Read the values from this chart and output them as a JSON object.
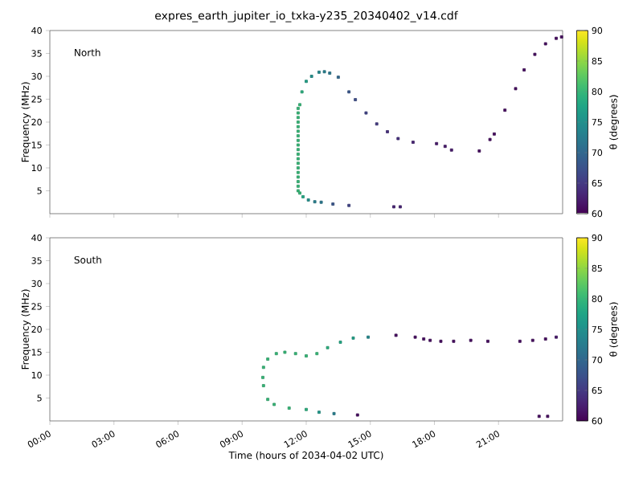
{
  "chart_data": [
    {
      "type": "scatter",
      "title": "expres_earth_jupiter_io_txka-y235_20340402_v14.cdf",
      "ylabel": "Frequency (MHz)",
      "clabel": "θ (degrees)",
      "annotations": [
        "North"
      ],
      "marker": "square",
      "tick_labels": "y",
      "xlim": [
        0,
        24
      ],
      "xticks": [
        {
          "value": 0,
          "label": null
        },
        {
          "value": 3,
          "label": null
        },
        {
          "value": 6,
          "label": null
        },
        {
          "value": 9,
          "label": null
        },
        {
          "value": 12,
          "label": null
        },
        {
          "value": 15,
          "label": null
        },
        {
          "value": 18,
          "label": null
        },
        {
          "value": 21,
          "label": null
        }
      ],
      "ylim": [
        0,
        40
      ],
      "yticks": [
        5,
        10,
        15,
        20,
        25,
        30,
        35,
        40
      ],
      "clim": [
        60,
        90
      ],
      "cticks": [
        60,
        65,
        70,
        75,
        80,
        85,
        90
      ],
      "series": [
        {
          "x": [
            11.62,
            11.62,
            11.62,
            11.62,
            11.62,
            11.62,
            11.62,
            11.62,
            11.62,
            11.62,
            11.62,
            11.62,
            11.62,
            11.62,
            11.62,
            11.62,
            11.62,
            11.62,
            11.62,
            11.7,
            11.8,
            12.0,
            12.25,
            12.6,
            12.85,
            13.1,
            13.5,
            14.0,
            14.3,
            14.8,
            15.3,
            15.8,
            16.3,
            17.0,
            18.1,
            18.5,
            18.8,
            20.1,
            20.6,
            20.8,
            21.3,
            21.8,
            22.2,
            22.7,
            23.2,
            23.7,
            23.95,
            11.7,
            11.85,
            12.1,
            12.4,
            12.7,
            13.25,
            14.0,
            16.1,
            16.4
          ],
          "values": [
            5,
            6,
            7,
            8,
            9,
            10,
            11,
            12,
            13,
            14,
            15,
            16,
            17,
            18,
            19,
            20,
            21,
            22,
            23,
            23.8,
            26.6,
            28.9,
            30.0,
            30.9,
            31.0,
            30.7,
            29.8,
            26.6,
            24.9,
            22.0,
            19.6,
            17.9,
            16.4,
            15.6,
            15.3,
            14.7,
            13.9,
            13.7,
            16.2,
            17.4,
            22.6,
            27.3,
            31.4,
            34.8,
            37.1,
            38.3,
            38.6,
            4.5,
            3.7,
            3.0,
            2.6,
            2.5,
            2.1,
            1.8,
            1.5,
            1.5
          ],
          "cvalues": [
            80,
            80,
            80,
            80,
            80,
            80,
            80,
            80,
            80,
            80,
            80,
            80,
            80,
            80,
            80,
            80,
            80,
            80,
            80,
            80,
            79,
            77,
            75,
            74,
            73,
            72,
            70,
            68,
            67,
            66,
            65,
            64,
            64,
            63,
            62,
            62,
            62,
            61,
            61,
            61,
            61,
            61,
            61,
            61,
            61,
            61,
            61,
            80,
            78,
            75,
            73,
            72,
            68,
            66,
            63,
            63
          ]
        }
      ]
    },
    {
      "type": "scatter",
      "xlabel": "Time (hours of 2034-04-02 UTC)",
      "ylabel": "Frequency (MHz)",
      "clabel": "θ (degrees)",
      "annotations": [
        "South"
      ],
      "marker": "square",
      "xlim": [
        0,
        24
      ],
      "xticks": [
        {
          "value": 0,
          "label": "00:00"
        },
        {
          "value": 3,
          "label": "03:00"
        },
        {
          "value": 6,
          "label": "06:00"
        },
        {
          "value": 9,
          "label": "09:00"
        },
        {
          "value": 12,
          "label": "12:00"
        },
        {
          "value": 15,
          "label": "15:00"
        },
        {
          "value": 18,
          "label": "18:00"
        },
        {
          "value": 21,
          "label": "21:00"
        }
      ],
      "ylim": [
        0,
        40
      ],
      "yticks": [
        5,
        10,
        15,
        20,
        25,
        30,
        35,
        40
      ],
      "clim": [
        60,
        90
      ],
      "cticks": [
        60,
        65,
        70,
        75,
        80,
        85,
        90
      ],
      "series": [
        {
          "x": [
            14.4,
            13.3,
            12.6,
            12.0,
            11.2,
            10.5,
            10.2,
            10.0,
            9.97,
            10.0,
            10.2,
            10.6,
            11.0,
            11.5,
            12.0,
            12.5,
            13.0,
            13.6,
            14.2,
            14.9,
            16.2,
            17.1,
            17.5,
            17.8,
            18.3,
            18.9,
            19.7,
            20.5,
            22.0,
            22.6,
            23.2,
            23.7,
            22.9,
            23.3
          ],
          "values": [
            1.3,
            1.6,
            1.9,
            2.5,
            2.8,
            3.6,
            4.7,
            7.7,
            9.5,
            11.7,
            13.5,
            14.7,
            15.0,
            14.7,
            14.2,
            14.7,
            16.0,
            17.2,
            18.1,
            18.3,
            18.7,
            18.3,
            17.9,
            17.6,
            17.4,
            17.4,
            17.6,
            17.4,
            17.4,
            17.6,
            17.9,
            18.3,
            1.0,
            1.0
          ],
          "cvalues": [
            61,
            73,
            76,
            79,
            80,
            80,
            80,
            80,
            80,
            80,
            80,
            80,
            80,
            80,
            80,
            80,
            79,
            78,
            77,
            74,
            61,
            61,
            61,
            61,
            61,
            61,
            61,
            61,
            61,
            61,
            61,
            62,
            61,
            61
          ]
        }
      ]
    }
  ]
}
